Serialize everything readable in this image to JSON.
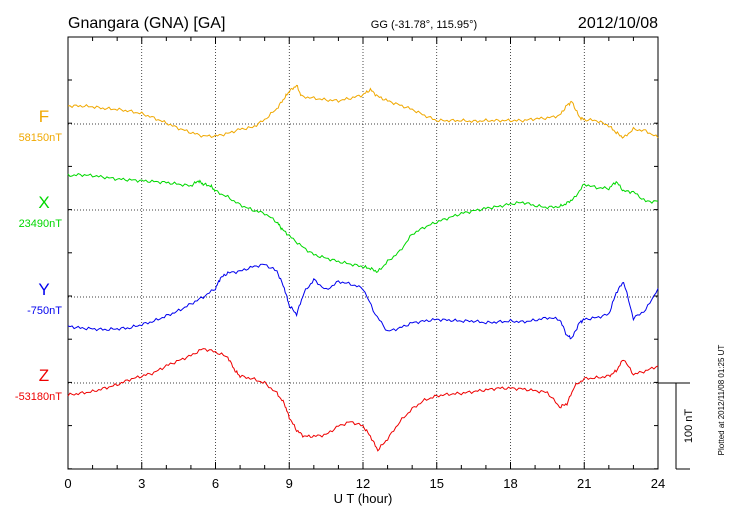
{
  "header": {
    "station": "Gnangara (GNA)  [GA]",
    "coords": "GG (-31.78°, 115.95°)",
    "date": "2012/10/08"
  },
  "side_note": "Plotted at 2012/11/08 01:25 UT",
  "chart_data": {
    "type": "line",
    "xlabel": "U T (hour)",
    "xlim": [
      0,
      24
    ],
    "x_ticks": [
      "0",
      "3",
      "6",
      "9",
      "12",
      "15",
      "18",
      "21",
      "24"
    ],
    "scale_bar": {
      "label": "100 nT",
      "value_nT": 100
    },
    "series": [
      {
        "name": "F",
        "baseline": "58150nT",
        "color": "#f0a800",
        "x": [
          0,
          0.5,
          1,
          1.5,
          2,
          2.5,
          3,
          3.5,
          4,
          4.5,
          5,
          5.5,
          6,
          6.5,
          7,
          7.5,
          8,
          8.5,
          8.8,
          9,
          9.3,
          9.5,
          10,
          10.5,
          11,
          11.5,
          12,
          12.3,
          12.6,
          13,
          13.5,
          14,
          14.5,
          15,
          15.5,
          16,
          16.5,
          17,
          17.5,
          18,
          18.5,
          19,
          19.5,
          20,
          20.3,
          20.5,
          20.8,
          21,
          21.5,
          22,
          22.3,
          22.6,
          23,
          23.5,
          24
        ],
        "y": [
          21,
          21,
          20,
          18,
          17,
          15,
          12,
          7,
          1,
          -5,
          -10,
          -14,
          -14,
          -11,
          -6,
          -4,
          5,
          18,
          30,
          38,
          45,
          32,
          30,
          28,
          27,
          30,
          34,
          40,
          32,
          27,
          22,
          17,
          10,
          4,
          4,
          4,
          3,
          4,
          4,
          4,
          4,
          6,
          7,
          10,
          22,
          26,
          8,
          5,
          4,
          -2,
          -10,
          -16,
          -6,
          -8,
          -16
        ]
      },
      {
        "name": "X",
        "baseline": "23490nT",
        "color": "#00d800",
        "x": [
          0,
          0.5,
          1,
          1.5,
          2,
          2.5,
          3,
          3.5,
          4,
          4.5,
          5,
          5.3,
          5.5,
          5.8,
          6,
          6.5,
          7,
          7.5,
          8,
          8.5,
          8.7,
          9,
          9.5,
          10,
          10.5,
          11,
          11.5,
          12,
          12.3,
          12.6,
          13,
          13.5,
          14,
          14.5,
          15,
          15.5,
          16,
          16.5,
          17,
          17.5,
          18,
          18.5,
          19,
          19.5,
          20,
          20.3,
          20.6,
          21,
          21.5,
          22,
          22.3,
          22.6,
          23,
          23.5,
          24
        ],
        "y": [
          40,
          41,
          40,
          38,
          36,
          35,
          34,
          33,
          32,
          30,
          28,
          34,
          30,
          28,
          22,
          15,
          6,
          0,
          -4,
          -14,
          -22,
          -30,
          -42,
          -52,
          -56,
          -60,
          -63,
          -66,
          -68,
          -72,
          -60,
          -48,
          -28,
          -20,
          -14,
          -9,
          -4,
          -1,
          2,
          4,
          7,
          9,
          5,
          3,
          4,
          8,
          14,
          30,
          26,
          25,
          33,
          22,
          21,
          10,
          10
        ]
      },
      {
        "name": "Y",
        "baseline": "-750nT",
        "color": "#0000ee",
        "x": [
          0,
          0.5,
          1,
          1.5,
          2,
          2.5,
          3,
          3.5,
          4,
          4.5,
          5,
          5.5,
          6,
          6.2,
          6.5,
          7,
          7.5,
          8,
          8.5,
          8.8,
          9,
          9.3,
          9.6,
          10,
          10.5,
          11,
          11.5,
          12,
          12.5,
          13,
          13.5,
          14,
          14.5,
          15,
          15.5,
          16,
          16.5,
          17,
          17.5,
          18,
          18.5,
          19,
          19.5,
          20,
          20.3,
          20.5,
          20.8,
          21,
          21.5,
          22,
          22.3,
          22.6,
          23,
          23.5,
          24
        ],
        "y": [
          -34,
          -36,
          -37,
          -38,
          -37,
          -36,
          -32,
          -28,
          -22,
          -16,
          -8,
          0,
          10,
          22,
          28,
          30,
          35,
          38,
          30,
          10,
          -10,
          -20,
          5,
          20,
          8,
          18,
          15,
          10,
          -20,
          -40,
          -36,
          -30,
          -28,
          -26,
          -27,
          -28,
          -28,
          -30,
          -29,
          -28,
          -29,
          -27,
          -24,
          -26,
          -45,
          -48,
          -30,
          -26,
          -24,
          -20,
          5,
          18,
          -25,
          -15,
          10
        ]
      },
      {
        "name": "Z",
        "baseline": "-53180nT",
        "color": "#ee0000",
        "x": [
          0,
          0.5,
          1,
          1.5,
          2,
          2.5,
          3,
          3.5,
          4,
          4.5,
          5,
          5.5,
          6,
          6.5,
          6.8,
          7,
          7.5,
          8,
          8.5,
          8.8,
          9,
          9.3,
          9.6,
          10,
          10.5,
          11,
          11.5,
          12,
          12.3,
          12.6,
          13,
          13.5,
          14,
          14.5,
          15,
          15.5,
          16,
          16.5,
          17,
          17.5,
          18,
          18.5,
          19,
          19.5,
          20,
          20.3,
          20.6,
          21,
          21.5,
          22,
          22.3,
          22.6,
          23,
          23.5,
          24
        ],
        "y": [
          -14,
          -12,
          -10,
          -6,
          -2,
          4,
          8,
          12,
          20,
          26,
          32,
          40,
          36,
          30,
          14,
          8,
          5,
          0,
          -12,
          -24,
          -40,
          -55,
          -62,
          -62,
          -60,
          -50,
          -45,
          -50,
          -62,
          -78,
          -65,
          -45,
          -30,
          -20,
          -15,
          -13,
          -12,
          -10,
          -8,
          -6,
          -6,
          -7,
          -9,
          -11,
          -28,
          -24,
          -4,
          5,
          6,
          8,
          14,
          28,
          10,
          14,
          20
        ]
      }
    ]
  }
}
